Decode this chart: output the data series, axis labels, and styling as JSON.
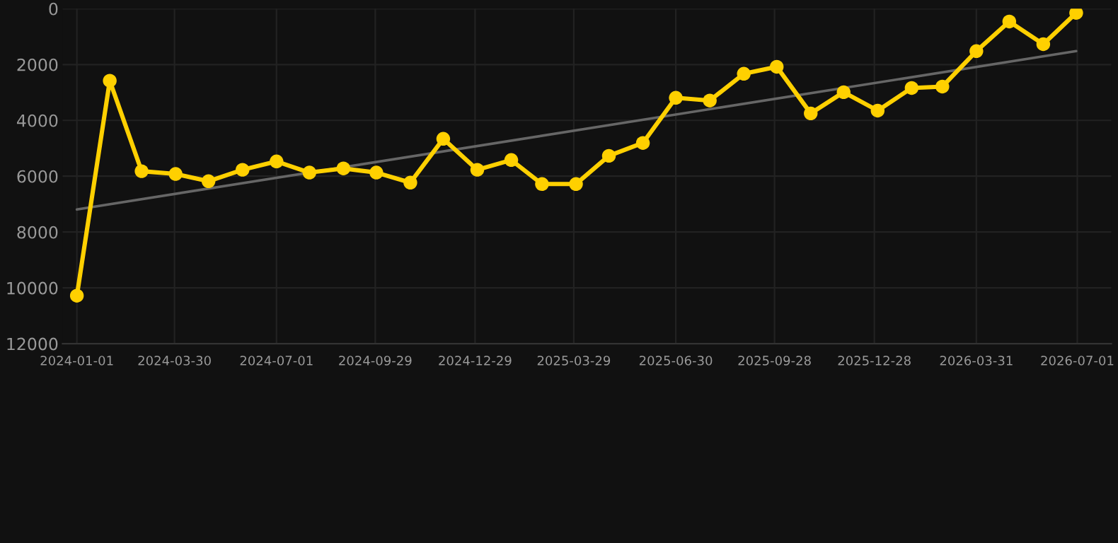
{
  "chart_data": {
    "type": "line",
    "ylim": [
      12000,
      0
    ],
    "yticks": [
      0,
      2000,
      4000,
      6000,
      8000,
      10000,
      12000
    ],
    "xlim": [
      "2023-12-19",
      "2026-08-01"
    ],
    "xticks": [
      {
        "value": "2024-01-01",
        "label": "2024-01-01"
      },
      {
        "value": "2024-03-30",
        "label": "2024-03-30"
      },
      {
        "value": "2024-07-01",
        "label": "2024-07-01"
      },
      {
        "value": "2024-09-29",
        "label": "2024-09-29"
      },
      {
        "value": "2024-12-29",
        "label": "2024-12-29"
      },
      {
        "value": "2025-03-29",
        "label": "2025-03-29"
      },
      {
        "value": "2025-06-30",
        "label": "2025-06-30"
      },
      {
        "value": "2025-09-28",
        "label": "2025-09-28"
      },
      {
        "value": "2025-12-28",
        "label": "2025-12-28"
      },
      {
        "value": "2026-03-31",
        "label": "2026-03-31"
      },
      {
        "value": "2026-07-01",
        "label": "2026-07-01"
      }
    ],
    "grid": true,
    "line_style": "solid",
    "series": [
      {
        "color": "#ffd000",
        "marker": "circle",
        "x": [
          "2024-01-01",
          "2024-01-31",
          "2024-02-29",
          "2024-03-31",
          "2024-04-30",
          "2024-05-31",
          "2024-07-01",
          "2024-07-31",
          "2024-08-31",
          "2024-09-30",
          "2024-10-31",
          "2024-11-30",
          "2024-12-31",
          "2025-01-31",
          "2025-02-28",
          "2025-03-31",
          "2025-04-30",
          "2025-05-31",
          "2025-06-30",
          "2025-07-31",
          "2025-08-31",
          "2025-09-30",
          "2025-10-31",
          "2025-11-30",
          "2025-12-31",
          "2026-01-31",
          "2026-02-28",
          "2026-03-31",
          "2026-04-30",
          "2026-05-31",
          "2026-06-30"
        ],
        "values": [
          10280,
          2580,
          5820,
          5920,
          6180,
          5770,
          5470,
          5870,
          5720,
          5870,
          6230,
          4660,
          5770,
          5420,
          6280,
          6280,
          5270,
          4810,
          3190,
          3290,
          2330,
          2080,
          3750,
          2990,
          3650,
          2840,
          2790,
          1520,
          460,
          1270,
          150
        ]
      },
      {
        "color": "#666666",
        "marker": "none",
        "x": [
          "2024-01-01",
          "2026-06-30"
        ],
        "values": [
          7190,
          1520
        ]
      }
    ]
  }
}
